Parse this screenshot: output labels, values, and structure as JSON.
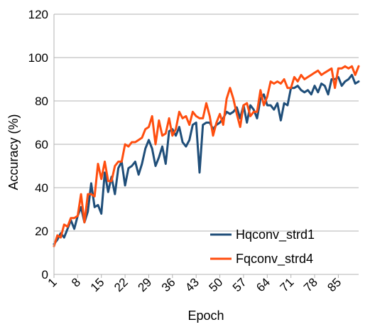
{
  "chart_data": {
    "type": "line",
    "title": "",
    "xlabel": "Epoch",
    "ylabel": "Accuracy (%)",
    "ylim": [
      0,
      120
    ],
    "yticks": [
      0,
      20,
      40,
      60,
      80,
      100,
      120
    ],
    "xlim": [
      1,
      91
    ],
    "xticks": [
      1,
      8,
      15,
      22,
      29,
      36,
      43,
      50,
      57,
      64,
      71,
      78,
      85
    ],
    "grid": "horizontal",
    "legend_position": "bottom-right",
    "series": [
      {
        "name": "Hqconv_strd1",
        "color": "#1f4e79",
        "x": [
          1,
          2,
          3,
          4,
          5,
          6,
          7,
          8,
          9,
          10,
          11,
          12,
          13,
          14,
          15,
          16,
          17,
          18,
          19,
          20,
          21,
          22,
          23,
          24,
          25,
          26,
          27,
          28,
          29,
          30,
          31,
          32,
          33,
          34,
          35,
          36,
          37,
          38,
          39,
          40,
          41,
          42,
          43,
          44,
          45,
          46,
          47,
          48,
          49,
          50,
          51,
          52,
          53,
          54,
          55,
          56,
          57,
          58,
          59,
          60,
          61,
          62,
          63,
          64,
          65,
          66,
          67,
          68,
          69,
          70,
          71,
          72,
          73,
          74,
          75,
          76,
          77,
          78,
          79,
          80,
          81,
          82,
          83,
          84,
          85,
          86,
          87,
          88,
          89,
          90,
          91
        ],
        "y": [
          14,
          16,
          19,
          17,
          21,
          25,
          21,
          27,
          31,
          24,
          29,
          42,
          31,
          32,
          28,
          47,
          38,
          45,
          37,
          49,
          52,
          41,
          49,
          50,
          52,
          46,
          51,
          58,
          62,
          58,
          50,
          54,
          59,
          51,
          66,
          67,
          64,
          68,
          61,
          59,
          62,
          69,
          70,
          47,
          69,
          70,
          70,
          67,
          69,
          70,
          72,
          75,
          74,
          75,
          77,
          72,
          78,
          70,
          78,
          76,
          72,
          81,
          83,
          78,
          78,
          76,
          79,
          71,
          79,
          78,
          86,
          86,
          87,
          85,
          84,
          85,
          83,
          87,
          84,
          88,
          87,
          83,
          90,
          90,
          91,
          87,
          89,
          90,
          92,
          88,
          89
        ]
      },
      {
        "name": "Fqconv_strd4",
        "color": "#ff4e0f",
        "x": [
          1,
          2,
          3,
          4,
          5,
          6,
          7,
          8,
          9,
          10,
          11,
          12,
          13,
          14,
          15,
          16,
          17,
          18,
          19,
          20,
          21,
          22,
          23,
          24,
          25,
          26,
          27,
          28,
          29,
          30,
          31,
          32,
          33,
          34,
          35,
          36,
          37,
          38,
          39,
          40,
          41,
          42,
          43,
          44,
          45,
          46,
          47,
          48,
          49,
          50,
          51,
          52,
          53,
          54,
          55,
          56,
          57,
          58,
          59,
          60,
          61,
          62,
          63,
          64,
          65,
          66,
          67,
          68,
          69,
          70,
          71,
          72,
          73,
          74,
          75,
          76,
          77,
          78,
          79,
          80,
          81,
          82,
          83,
          84,
          85,
          86,
          87,
          88,
          89,
          90,
          91
        ],
        "y": [
          13,
          18,
          17,
          23,
          22,
          26,
          26,
          27,
          37,
          24,
          37,
          37,
          36,
          51,
          44,
          52,
          43,
          43,
          50,
          52,
          52,
          60,
          59,
          61,
          61,
          62,
          63,
          67,
          68,
          73,
          60,
          71,
          64,
          65,
          72,
          64,
          67,
          75,
          72,
          73,
          69,
          75,
          73,
          72,
          72,
          79,
          73,
          64,
          70,
          74,
          69,
          81,
          86,
          81,
          74,
          68,
          78,
          79,
          73,
          75,
          75,
          85,
          78,
          82,
          89,
          88,
          89,
          88,
          90,
          86,
          86,
          91,
          89,
          92,
          90,
          91,
          92,
          93,
          94,
          92,
          93,
          94,
          95,
          86,
          95,
          95,
          96,
          95,
          96,
          92,
          96
        ]
      }
    ]
  }
}
